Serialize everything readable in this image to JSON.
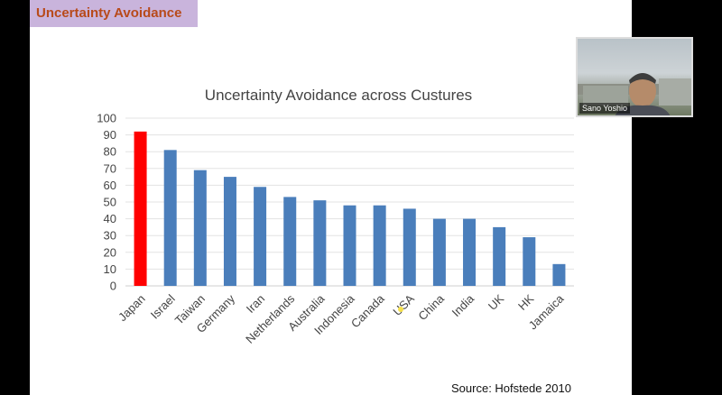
{
  "header": {
    "title": "Uncertainty Avoidance"
  },
  "source": "Source: Hofstede 2010",
  "webcam": {
    "name": "Sano Yoshio"
  },
  "colors": {
    "highlight_bar": "#ff0000",
    "bar": "#4a7ebb",
    "title_bar_bg": "#c9b4dc",
    "title_text": "#b84a1a"
  },
  "chart_data": {
    "type": "bar",
    "title": "Uncertainty Avoidance across Custures",
    "xlabel": "",
    "ylabel": "",
    "ylim": [
      0,
      100
    ],
    "yticks": [
      "0",
      "10",
      "20",
      "30",
      "40",
      "50",
      "60",
      "70",
      "80",
      "90",
      "100"
    ],
    "grid": true,
    "categories": [
      "Japan",
      "Israel",
      "Taiwan",
      "Germany",
      "Iran",
      "Netherlands",
      "Australia",
      "Indonesia",
      "Canada",
      "USA",
      "China",
      "India",
      "UK",
      "HK",
      "Jamaica"
    ],
    "values": [
      92,
      81,
      69,
      65,
      59,
      53,
      51,
      48,
      48,
      46,
      40,
      40,
      35,
      29,
      13
    ],
    "highlighted": [
      "Japan"
    ]
  }
}
